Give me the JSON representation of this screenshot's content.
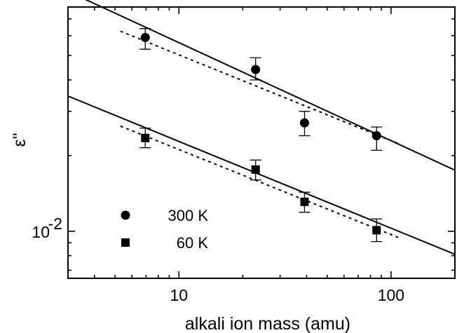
{
  "chart_data": {
    "type": "scatter",
    "title": "",
    "xlabel": "alkali ion mass (amu)",
    "ylabel": "ε\"",
    "x_scale": "log",
    "y_scale": "log",
    "xlim": [
      3,
      200
    ],
    "ylim": [
      0.0065,
      0.078
    ],
    "x_major_ticks": [
      10,
      100
    ],
    "x_tick_labels": [
      "10",
      "100"
    ],
    "y_major_ticks": [
      0.01
    ],
    "y_tick_base": "10",
    "y_tick_exp": "-2",
    "grid": false,
    "legend": {
      "placement": "bottom-left"
    },
    "series": [
      {
        "name": "300 K",
        "marker": "circle",
        "color": "#000000",
        "points": [
          {
            "x": 6.94,
            "y": 0.059,
            "err_low": 0.053,
            "err_high": 0.064
          },
          {
            "x": 22.99,
            "y": 0.044,
            "err_low": 0.04,
            "err_high": 0.049
          },
          {
            "x": 39.1,
            "y": 0.027,
            "err_low": 0.024,
            "err_high": 0.03
          },
          {
            "x": 85.47,
            "y": 0.024,
            "err_low": 0.021,
            "err_high": 0.026
          }
        ],
        "fit_solid": {
          "x": [
            3,
            200
          ],
          "y": [
            0.09,
            0.0175
          ]
        },
        "fit_dotted": {
          "x": [
            5.3,
            110
          ],
          "y": [
            0.0625,
            0.0222
          ]
        }
      },
      {
        "name": "60 K",
        "marker": "square",
        "color": "#000000",
        "points": [
          {
            "x": 6.94,
            "y": 0.0235,
            "err_low": 0.0215,
            "err_high": 0.0257
          },
          {
            "x": 22.99,
            "y": 0.0176,
            "err_low": 0.016,
            "err_high": 0.0192
          },
          {
            "x": 39.1,
            "y": 0.0131,
            "err_low": 0.0119,
            "err_high": 0.0143
          },
          {
            "x": 85.47,
            "y": 0.0101,
            "err_low": 0.0091,
            "err_high": 0.0112
          }
        ],
        "fit_solid": {
          "x": [
            3,
            200
          ],
          "y": [
            0.0345,
            0.0081
          ]
        },
        "fit_dotted": {
          "x": [
            5.3,
            110
          ],
          "y": [
            0.0262,
            0.0094
          ]
        }
      }
    ]
  }
}
